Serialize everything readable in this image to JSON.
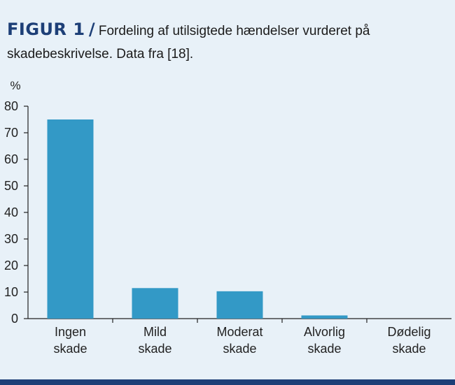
{
  "figure": {
    "label": "FIGUR 1",
    "separator": "/",
    "caption": "Fordeling af utilsigtede hændelser vurderet på skadebeskrivelse. Data fra [18]."
  },
  "colors": {
    "bar": "#3399c6",
    "accent": "#1d3f77",
    "background": "#e8f1f8",
    "axis": "#222222"
  },
  "chart_data": {
    "type": "bar",
    "categories": [
      [
        "Ingen",
        "skade"
      ],
      [
        "Mild",
        "skade"
      ],
      [
        "Moderat",
        "skade"
      ],
      [
        "Alvorlig",
        "skade"
      ],
      [
        "Dødelig",
        "skade"
      ]
    ],
    "values": [
      75,
      11.5,
      10.3,
      1.2,
      0
    ],
    "ylabel": "%",
    "ylim": [
      0,
      80
    ],
    "yticks": [
      0,
      10,
      20,
      30,
      40,
      50,
      60,
      70,
      80
    ],
    "grid": false,
    "legend": "none"
  }
}
